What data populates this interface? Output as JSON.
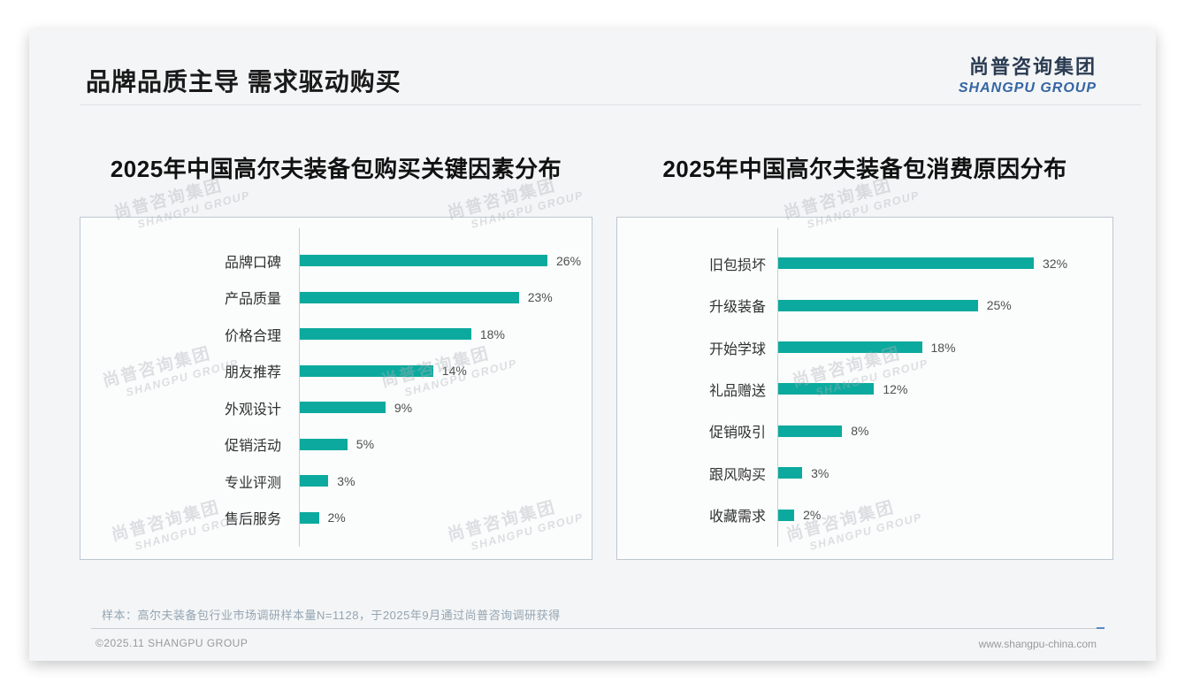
{
  "page": {
    "title": "品牌品质主导 需求驱动购买"
  },
  "brand": {
    "logo_cn": "尚普咨询集团",
    "logo_en": "SHANGPU GROUP"
  },
  "watermark": {
    "line1": "尚普咨询集团",
    "line2": "SHANGPU GROUP"
  },
  "chart_data": [
    {
      "type": "bar",
      "orientation": "horizontal",
      "title": "2025年中国高尔夫装备包购买关键因素分布",
      "categories": [
        "品牌口碑",
        "产品质量",
        "价格合理",
        "朋友推荐",
        "外观设计",
        "促销活动",
        "专业评测",
        "售后服务"
      ],
      "values": [
        26,
        23,
        18,
        14,
        9,
        5,
        3,
        2
      ],
      "value_suffix": "%",
      "bar_color": "#0caa9e",
      "xlim": [
        0,
        30
      ],
      "grid": false,
      "legend": false,
      "value_labels": "end-of-bar"
    },
    {
      "type": "bar",
      "orientation": "horizontal",
      "title": "2025年中国高尔夫装备包消费原因分布",
      "categories": [
        "旧包损坏",
        "升级装备",
        "开始学球",
        "礼品赠送",
        "促销吸引",
        "跟风购买",
        "收藏需求"
      ],
      "values": [
        32,
        25,
        18,
        12,
        8,
        3,
        2
      ],
      "value_suffix": "%",
      "bar_color": "#0caa9e",
      "xlim": [
        0,
        36
      ],
      "grid": false,
      "legend": false,
      "value_labels": "end-of-bar"
    }
  ],
  "footnote": "样本：高尔夫装备包行业市场调研样本量N=1128，于2025年9月通过尚普咨询调研获得",
  "footer": {
    "copyright": "©2025.11 SHANGPU GROUP",
    "website": "www.shangpu-china.com"
  },
  "colors": {
    "bar_teal": "#0caa9e",
    "logo_blue": "#3465a4"
  }
}
